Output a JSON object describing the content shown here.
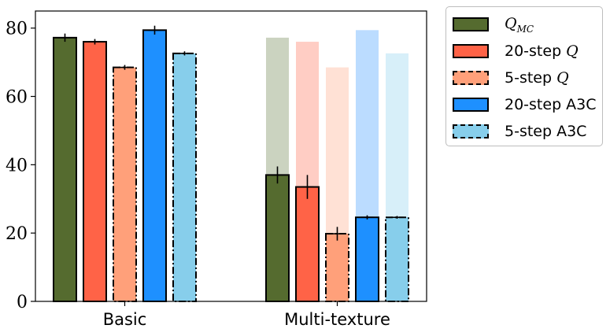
{
  "chart_data": {
    "type": "bar",
    "categories": [
      "Basic",
      "Multi-texture"
    ],
    "ylim": [
      0,
      85
    ],
    "yticks": [
      0,
      20,
      40,
      60,
      80
    ],
    "grid": false,
    "legend_position": "outside-top-right",
    "series": [
      {
        "name": "Q_MC",
        "legend_main": "Q",
        "legend_sub": "MC",
        "legend_italic": true,
        "color": "#556b2f",
        "faded_color": "#cbd3c0",
        "border": "solid",
        "values": [
          77.2,
          37.0
        ],
        "errors": [
          1.2,
          2.5
        ],
        "faded_values": [
          null,
          77.2
        ]
      },
      {
        "name": "20-step Q",
        "legend_main": "20-step ",
        "legend_q": "Q",
        "color": "#ff6347",
        "faded_color": "#ffcdc4",
        "border": "solid",
        "values": [
          76.0,
          33.5
        ],
        "errors": [
          0.8,
          3.5
        ],
        "faded_values": [
          null,
          76.0
        ]
      },
      {
        "name": "5-step Q",
        "legend_main": "5-step ",
        "legend_q": "Q",
        "color": "#ffa07a",
        "faded_color": "#ffe1d5",
        "border": "dashdot",
        "values": [
          68.5,
          19.8
        ],
        "errors": [
          0.7,
          2.0
        ],
        "faded_values": [
          null,
          68.5
        ]
      },
      {
        "name": "20-step A3C",
        "legend_main": "20-step A3C",
        "color": "#1e90ff",
        "faded_color": "#bbdcff",
        "border": "solid",
        "values": [
          79.4,
          24.6
        ],
        "errors": [
          1.3,
          0.6
        ],
        "faded_values": [
          null,
          79.4
        ]
      },
      {
        "name": "5-step A3C",
        "legend_main": "5-step A3C",
        "color": "#87ceeb",
        "faded_color": "#d7eff9",
        "border": "dashdot",
        "values": [
          72.6,
          24.6
        ],
        "errors": [
          0.6,
          0.4
        ],
        "faded_values": [
          null,
          72.6
        ]
      }
    ]
  }
}
